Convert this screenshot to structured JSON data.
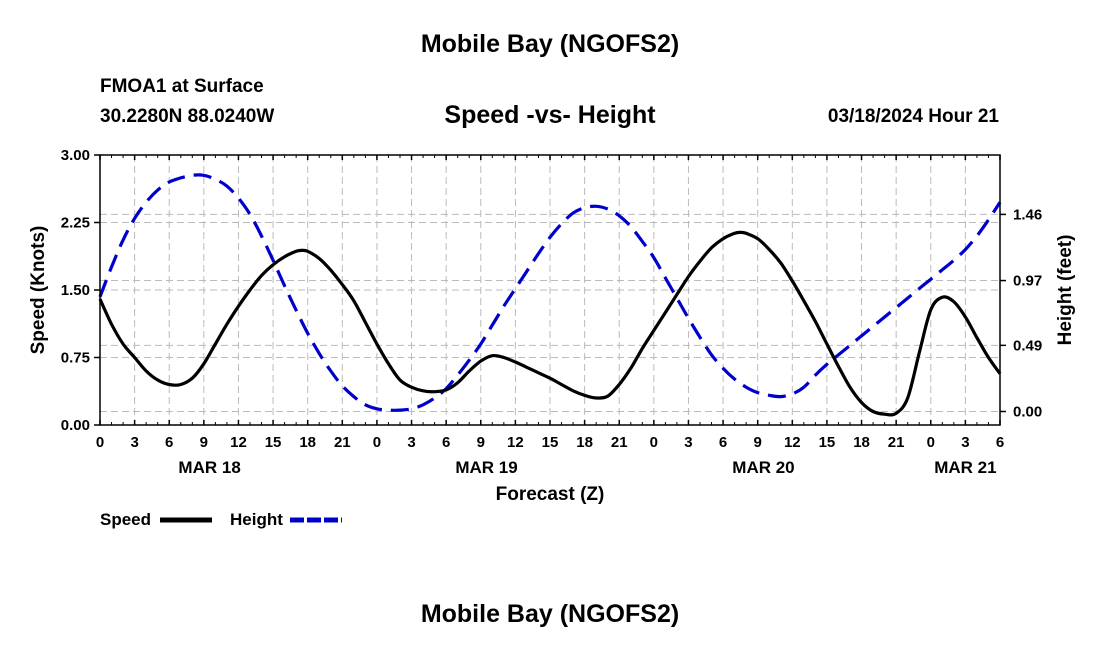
{
  "header": {
    "title": "Mobile Bay (NGOFS2)",
    "station": "FMOA1 at Surface",
    "coords": "30.2280N  88.0240W",
    "date": "03/18/2024 Hour 21"
  },
  "footer": {
    "title": "Mobile Bay (NGOFS2)"
  },
  "colors": {
    "speed": "#000000",
    "height": "#0000cc",
    "grid": "#bbbbbb"
  },
  "chart_data": {
    "type": "line",
    "title": "Speed -vs- Height",
    "xlabel": "Forecast (Z)",
    "ylabel": "Speed (Knots)",
    "y2label": "Height (feet)",
    "xlim": [
      0,
      78
    ],
    "ylim": [
      0,
      3
    ],
    "y2lim": [
      -0.1,
      1.9
    ],
    "grid": true,
    "legend_position": "bottom-left",
    "x_tick_values": [
      0,
      3,
      6,
      9,
      12,
      15,
      18,
      21,
      24,
      27,
      30,
      33,
      36,
      39,
      42,
      45,
      48,
      51,
      54,
      57,
      60,
      63,
      66,
      69,
      72,
      75,
      78
    ],
    "x_tick_labels": [
      "0",
      "3",
      "6",
      "9",
      "12",
      "15",
      "18",
      "21",
      "0",
      "3",
      "6",
      "9",
      "12",
      "15",
      "18",
      "21",
      "0",
      "3",
      "6",
      "9",
      "12",
      "15",
      "18",
      "21",
      "0",
      "3",
      "6"
    ],
    "date_labels": [
      {
        "label": "MAR 18",
        "x": 9.5
      },
      {
        "label": "MAR 19",
        "x": 33.5
      },
      {
        "label": "MAR 20",
        "x": 57.5
      },
      {
        "label": "MAR 21",
        "x": 75
      }
    ],
    "y_ticks": [
      {
        "value": 0,
        "label": "0.00"
      },
      {
        "value": 0.75,
        "label": "0.75"
      },
      {
        "value": 1.5,
        "label": "1.50"
      },
      {
        "value": 2.25,
        "label": "2.25"
      },
      {
        "value": 3,
        "label": "3.00"
      }
    ],
    "y2_ticks": [
      {
        "value": 0.0,
        "label": "0.00"
      },
      {
        "value": 0.49,
        "label": "0.49"
      },
      {
        "value": 0.97,
        "label": "0.97"
      },
      {
        "value": 1.46,
        "label": "1.46"
      }
    ],
    "series": [
      {
        "name": "Speed",
        "axis": "left",
        "style": "solid",
        "points": [
          [
            0,
            1.4
          ],
          [
            1,
            1.12
          ],
          [
            2,
            0.9
          ],
          [
            3,
            0.75
          ],
          [
            4,
            0.6
          ],
          [
            5,
            0.5
          ],
          [
            6,
            0.45
          ],
          [
            7,
            0.45
          ],
          [
            8,
            0.52
          ],
          [
            9,
            0.68
          ],
          [
            10,
            0.9
          ],
          [
            11,
            1.12
          ],
          [
            12,
            1.32
          ],
          [
            13,
            1.5
          ],
          [
            14,
            1.66
          ],
          [
            15,
            1.78
          ],
          [
            16,
            1.87
          ],
          [
            17,
            1.93
          ],
          [
            17.5,
            1.94
          ],
          [
            18,
            1.93
          ],
          [
            19,
            1.85
          ],
          [
            20,
            1.72
          ],
          [
            21,
            1.56
          ],
          [
            22,
            1.38
          ],
          [
            23,
            1.14
          ],
          [
            24,
            0.9
          ],
          [
            25,
            0.68
          ],
          [
            26,
            0.5
          ],
          [
            27,
            0.42
          ],
          [
            28,
            0.38
          ],
          [
            29,
            0.37
          ],
          [
            30,
            0.39
          ],
          [
            31,
            0.47
          ],
          [
            32,
            0.6
          ],
          [
            33,
            0.71
          ],
          [
            34,
            0.77
          ],
          [
            35,
            0.75
          ],
          [
            36,
            0.7
          ],
          [
            37,
            0.64
          ],
          [
            38,
            0.58
          ],
          [
            39,
            0.52
          ],
          [
            40,
            0.45
          ],
          [
            41,
            0.38
          ],
          [
            42,
            0.33
          ],
          [
            43,
            0.3
          ],
          [
            44,
            0.32
          ],
          [
            45,
            0.45
          ],
          [
            46,
            0.63
          ],
          [
            47,
            0.85
          ],
          [
            48,
            1.05
          ],
          [
            49,
            1.25
          ],
          [
            50,
            1.45
          ],
          [
            51,
            1.65
          ],
          [
            52,
            1.82
          ],
          [
            53,
            1.97
          ],
          [
            54,
            2.07
          ],
          [
            55,
            2.13
          ],
          [
            55.5,
            2.14
          ],
          [
            56,
            2.13
          ],
          [
            57,
            2.07
          ],
          [
            58,
            1.95
          ],
          [
            59,
            1.8
          ],
          [
            60,
            1.6
          ],
          [
            61,
            1.38
          ],
          [
            62,
            1.15
          ],
          [
            63,
            0.9
          ],
          [
            64,
            0.65
          ],
          [
            65,
            0.42
          ],
          [
            66,
            0.25
          ],
          [
            67,
            0.15
          ],
          [
            68,
            0.12
          ],
          [
            69,
            0.13
          ],
          [
            70,
            0.3
          ],
          [
            71,
            0.8
          ],
          [
            72,
            1.28
          ],
          [
            73,
            1.42
          ],
          [
            74,
            1.37
          ],
          [
            75,
            1.2
          ],
          [
            76,
            0.97
          ],
          [
            77,
            0.75
          ],
          [
            78,
            0.57
          ]
        ]
      },
      {
        "name": "Height",
        "axis": "right",
        "style": "dashed",
        "points": [
          [
            0,
            0.85
          ],
          [
            1,
            1.07
          ],
          [
            2,
            1.27
          ],
          [
            3,
            1.43
          ],
          [
            4,
            1.55
          ],
          [
            5,
            1.64
          ],
          [
            6,
            1.7
          ],
          [
            7,
            1.73
          ],
          [
            8,
            1.75
          ],
          [
            9,
            1.75
          ],
          [
            10,
            1.72
          ],
          [
            11,
            1.67
          ],
          [
            12,
            1.58
          ],
          [
            13,
            1.46
          ],
          [
            14,
            1.3
          ],
          [
            15,
            1.12
          ],
          [
            16,
            0.93
          ],
          [
            17,
            0.75
          ],
          [
            18,
            0.58
          ],
          [
            19,
            0.43
          ],
          [
            20,
            0.3
          ],
          [
            21,
            0.19
          ],
          [
            22,
            0.11
          ],
          [
            23,
            0.05
          ],
          [
            24,
            0.02
          ],
          [
            25,
            0.01
          ],
          [
            26,
            0.01
          ],
          [
            27,
            0.02
          ],
          [
            28,
            0.05
          ],
          [
            29,
            0.1
          ],
          [
            30,
            0.17
          ],
          [
            31,
            0.27
          ],
          [
            32,
            0.38
          ],
          [
            33,
            0.5
          ],
          [
            34,
            0.64
          ],
          [
            35,
            0.78
          ],
          [
            36,
            0.91
          ],
          [
            37,
            1.04
          ],
          [
            38,
            1.17
          ],
          [
            39,
            1.29
          ],
          [
            40,
            1.39
          ],
          [
            41,
            1.47
          ],
          [
            42,
            1.51
          ],
          [
            43,
            1.52
          ],
          [
            44,
            1.5
          ],
          [
            45,
            1.45
          ],
          [
            46,
            1.37
          ],
          [
            47,
            1.26
          ],
          [
            48,
            1.14
          ],
          [
            49,
            0.99
          ],
          [
            50,
            0.84
          ],
          [
            51,
            0.69
          ],
          [
            52,
            0.55
          ],
          [
            53,
            0.42
          ],
          [
            54,
            0.32
          ],
          [
            55,
            0.24
          ],
          [
            56,
            0.18
          ],
          [
            57,
            0.14
          ],
          [
            58,
            0.12
          ],
          [
            59,
            0.11
          ],
          [
            60,
            0.13
          ],
          [
            61,
            0.18
          ],
          [
            62,
            0.27
          ],
          [
            63,
            0.35
          ],
          [
            64,
            0.42
          ],
          [
            65,
            0.49
          ],
          [
            66,
            0.56
          ],
          [
            67,
            0.63
          ],
          [
            68,
            0.7
          ],
          [
            69,
            0.77
          ],
          [
            70,
            0.84
          ],
          [
            71,
            0.91
          ],
          [
            72,
            0.98
          ],
          [
            73,
            1.05
          ],
          [
            74,
            1.12
          ],
          [
            75,
            1.2
          ],
          [
            76,
            1.3
          ],
          [
            77,
            1.42
          ],
          [
            78,
            1.55
          ]
        ]
      }
    ]
  }
}
